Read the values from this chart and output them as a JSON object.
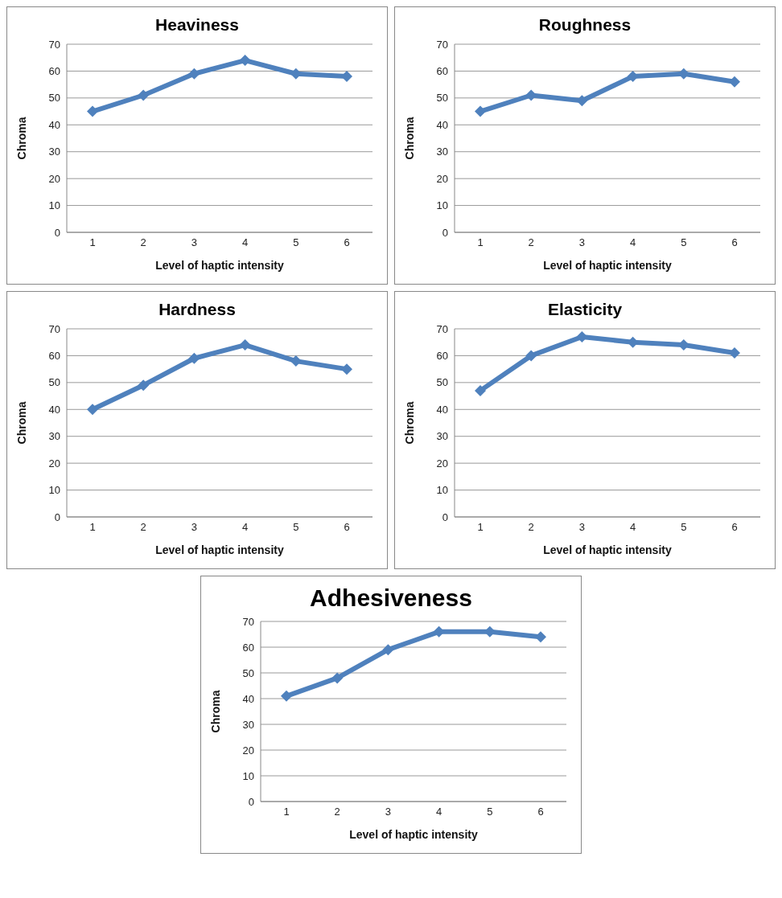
{
  "chart_data": [
    {
      "type": "line",
      "title": "Heaviness",
      "xlabel": "Level of haptic intensity",
      "ylabel": "Chroma",
      "categories": [
        "1",
        "2",
        "3",
        "4",
        "5",
        "6"
      ],
      "series": [
        {
          "color": "#4f81bd",
          "values": [
            45,
            51,
            59,
            64,
            59,
            58
          ]
        }
      ],
      "ylim": [
        0,
        70
      ],
      "yticks": [
        0,
        10,
        20,
        30,
        40,
        50,
        60,
        70
      ],
      "grid": "y",
      "marker": "diamond",
      "line_style": "solid"
    },
    {
      "type": "line",
      "title": "Roughness",
      "xlabel": "Level of haptic intensity",
      "ylabel": "Chroma",
      "categories": [
        "1",
        "2",
        "3",
        "4",
        "5",
        "6"
      ],
      "series": [
        {
          "color": "#4f81bd",
          "values": [
            45,
            51,
            49,
            58,
            59,
            56
          ]
        }
      ],
      "ylim": [
        0,
        70
      ],
      "yticks": [
        0,
        10,
        20,
        30,
        40,
        50,
        60,
        70
      ],
      "grid": "y",
      "marker": "diamond",
      "line_style": "solid"
    },
    {
      "type": "line",
      "title": "Hardness",
      "xlabel": "Level of haptic intensity",
      "ylabel": "Chroma",
      "categories": [
        "1",
        "2",
        "3",
        "4",
        "5",
        "6"
      ],
      "series": [
        {
          "color": "#4f81bd",
          "values": [
            40,
            49,
            59,
            64,
            58,
            55
          ]
        }
      ],
      "ylim": [
        0,
        70
      ],
      "yticks": [
        0,
        10,
        20,
        30,
        40,
        50,
        60,
        70
      ],
      "grid": "y",
      "marker": "diamond",
      "line_style": "solid"
    },
    {
      "type": "line",
      "title": "Elasticity",
      "xlabel": "Level of haptic intensity",
      "ylabel": "Chroma",
      "categories": [
        "1",
        "2",
        "3",
        "4",
        "5",
        "6"
      ],
      "series": [
        {
          "color": "#4f81bd",
          "values": [
            47,
            60,
            67,
            65,
            64,
            61
          ]
        }
      ],
      "ylim": [
        0,
        70
      ],
      "yticks": [
        0,
        10,
        20,
        30,
        40,
        50,
        60,
        70
      ],
      "grid": "y",
      "marker": "diamond",
      "line_style": "solid"
    },
    {
      "type": "line",
      "title": "Adhesiveness",
      "xlabel": "Level of haptic intensity",
      "ylabel": "Chroma",
      "categories": [
        "1",
        "2",
        "3",
        "4",
        "5",
        "6"
      ],
      "series": [
        {
          "color": "#4f81bd",
          "values": [
            41,
            48,
            59,
            66,
            66,
            64
          ]
        }
      ],
      "ylim": [
        0,
        70
      ],
      "yticks": [
        0,
        10,
        20,
        30,
        40,
        50,
        60,
        70
      ],
      "grid": "y",
      "marker": "diamond",
      "line_style": "solid"
    }
  ]
}
